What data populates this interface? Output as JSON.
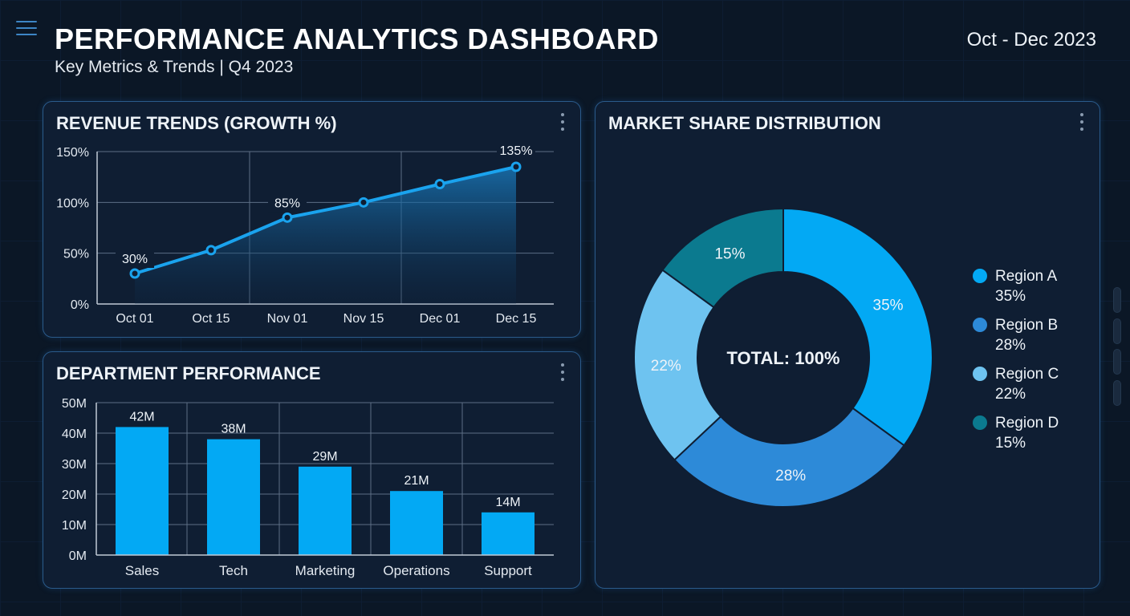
{
  "header": {
    "title": "PERFORMANCE ANALYTICS DASHBOARD",
    "subtitle": "Key Metrics & Trends | Q4 2023",
    "date_range": "Oct - Dec 2023"
  },
  "colors": {
    "accent": "#1aa3ee",
    "bar": "#03a9f4",
    "background": "#0b1726",
    "panel": "#0f1e33"
  },
  "chart_data": [
    {
      "type": "area",
      "title": "REVENUE TRENDS (GROWTH %)",
      "categories": [
        "Oct 01",
        "Oct 15",
        "Nov 01",
        "Nov 15",
        "Dec 01",
        "Dec 15"
      ],
      "values": [
        30,
        53,
        85,
        100,
        118,
        135
      ],
      "data_labels": {
        "0": "30%",
        "2": "85%",
        "5": "135%"
      },
      "ylim": [
        0,
        150
      ],
      "yticks": [
        "0%",
        "50%",
        "100%",
        "150%"
      ],
      "grid": true
    },
    {
      "type": "bar",
      "title": "DEPARTMENT PERFORMANCE",
      "categories": [
        "Sales",
        "Tech",
        "Marketing",
        "Operations",
        "Support"
      ],
      "values": [
        42,
        38,
        29,
        21,
        14
      ],
      "data_labels": [
        "42M",
        "38M",
        "29M",
        "21M",
        "14M"
      ],
      "ylim": [
        0,
        50
      ],
      "yticks": [
        "0M",
        "10M",
        "20M",
        "30M",
        "40M",
        "50M"
      ],
      "grid": true
    },
    {
      "type": "pie",
      "donut": true,
      "title": "MARKET SHARE DISTRIBUTION",
      "center_label": "TOTAL: 100%",
      "legend_position": "right",
      "slices": [
        {
          "name": "Region A",
          "value": 35,
          "label": "35%",
          "color": "#03a9f4"
        },
        {
          "name": "Region B",
          "value": 28,
          "label": "28%",
          "color": "#2d8ad8"
        },
        {
          "name": "Region C",
          "value": 22,
          "label": "22%",
          "color": "#6ec3f0"
        },
        {
          "name": "Region D",
          "value": 15,
          "label": "15%",
          "color": "#0b7a8f"
        }
      ]
    }
  ]
}
